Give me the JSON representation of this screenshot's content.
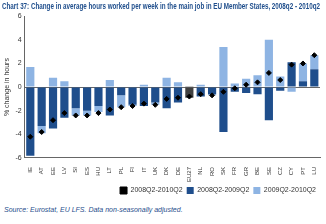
{
  "chart_data": {
    "type": "bar",
    "title": "Chart 37: Change in average hours worked per week in the main job in EU Member States, 2008q2 - 2010q2",
    "y_label": "% change in hours",
    "annotations": [
      "Source: Eurostat, EU LFS. Data non-seasonally adjusted."
    ],
    "categories": [
      "IE",
      "AT",
      "EE",
      "LV",
      "SI",
      "ES",
      "HU",
      "LT",
      "PL",
      "FI",
      "IT",
      "UK",
      "DK",
      "DE",
      "EU27",
      "NL",
      "RO",
      "SK",
      "FR",
      "GR",
      "BE",
      "SE",
      "CZ",
      "CY",
      "PT",
      "LU"
    ],
    "stacked": true,
    "legend": "bottom-right",
    "grid": false,
    "ylim": [
      -6,
      6
    ],
    "yticks": [
      -6,
      -4,
      -2,
      0,
      2,
      4,
      6
    ],
    "series": [
      {
        "name": "2008Q2-2009Q2",
        "type": "bar",
        "color": "#1f4e8c",
        "colors": [
          "#1f4e8c",
          "#1f4e8c",
          "#1f4e8c",
          "#1f4e8c",
          "#1f4e8c",
          "#1f4e8c",
          "#1f4e8c",
          "#1f4e8c",
          "#1f4e8c",
          "#1f4e8c",
          "#1f4e8c",
          "#1f4e8c",
          "#1f4e8c",
          "#1f4e8c",
          "#404040",
          "#1f4e8c",
          "#1f4e8c",
          "#1f4e8c",
          "#1f4e8c",
          "#1f4e8c",
          "#1f4e8c",
          "#1f4e8c",
          "#1f4e8c",
          "#1f4e8c",
          "#1f4e8c",
          "#1f4e8c"
        ],
        "values": [
          -5.8,
          -3.3,
          -3.5,
          -2.6,
          -1.8,
          -2.0,
          -1.6,
          -2.4,
          -0.7,
          -1.5,
          -1.6,
          -1.3,
          -1.8,
          -1.3,
          -0.9,
          -0.8,
          -0.6,
          -3.8,
          -0.4,
          -0.5,
          -0.6,
          -2.8,
          -0.3,
          2.1,
          0.5,
          1.5
        ]
      },
      {
        "name": "2009Q2-2010Q2",
        "type": "bar",
        "color": "#8eb4e3",
        "colors": [
          "#8eb4e3",
          "#8eb4e3",
          "#8eb4e3",
          "#8eb4e3",
          "#8eb4e3",
          "#8eb4e3",
          "#8eb4e3",
          "#8eb4e3",
          "#8eb4e3",
          "#8eb4e3",
          "#8eb4e3",
          "#8eb4e3",
          "#8eb4e3",
          "#8eb4e3",
          "#909090",
          "#8eb4e3",
          "#8eb4e3",
          "#8eb4e3",
          "#8eb4e3",
          "#8eb4e3",
          "#8eb4e3",
          "#8eb4e3",
          "#8eb4e3",
          "#8eb4e3",
          "#8eb4e3",
          "#8eb4e3"
        ],
        "values": [
          1.7,
          -0.6,
          0.8,
          0.5,
          -0.6,
          -0.4,
          -0.5,
          0.6,
          -1.0,
          -0.1,
          0.2,
          -0.2,
          0.8,
          0.4,
          0.1,
          0.2,
          -0.1,
          3.4,
          0.3,
          0.7,
          1.0,
          4.0,
          0.9,
          -0.4,
          1.5,
          1.2
        ]
      },
      {
        "name": "2008Q2-2010Q2",
        "type": "line",
        "line_style": "none",
        "marker": "diamond",
        "color": "#000000",
        "values": [
          -4.2,
          -3.8,
          -2.8,
          -2.2,
          -2.4,
          -2.4,
          -2.2,
          -1.9,
          -1.7,
          -1.6,
          -1.4,
          -1.5,
          -1.0,
          -0.9,
          -0.8,
          -0.6,
          -0.7,
          -0.4,
          -0.1,
          0.2,
          0.4,
          1.2,
          0.6,
          1.9,
          2.0,
          2.7
        ]
      }
    ]
  }
}
